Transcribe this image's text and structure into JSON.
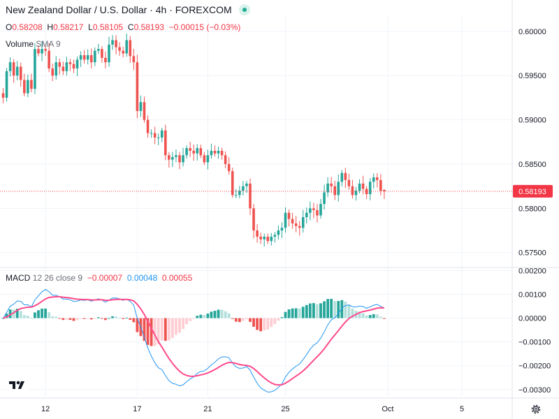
{
  "header": {
    "title": "New Zealand Dollar / U.S. Dollar · 4h · FOREXCOM",
    "ohlc": {
      "o_label": "O",
      "o": "0.58208",
      "h_label": "H",
      "h": "0.58217",
      "l_label": "L",
      "l": "0.58105",
      "c_label": "C",
      "c": "0.58193",
      "change": "−0.00015 (−0.03%)"
    },
    "volume_label": "Volume",
    "volume_sma": "SMA 9"
  },
  "macd_legend": {
    "label": "MACD",
    "params": "12 26 close 9",
    "hist": "−0.00007",
    "macd": "0.00048",
    "signal": "0.00055"
  },
  "colors": {
    "up": "#26a69a",
    "down": "#ef5350",
    "macd_line": "#2196f3",
    "signal_line": "#ff4a8b",
    "hist_up_strong": "#26a69a",
    "hist_up_weak": "#b2dfdb",
    "hist_down_strong": "#ef5350",
    "hist_down_weak": "#ffcdd2",
    "price_badge": "#f23645"
  },
  "icons": {
    "logo": "tradingview-logo-icon",
    "settings": "gear-icon",
    "status": "market-open-dot-icon"
  },
  "chart_data": [
    {
      "type": "candlestick",
      "title": "New Zealand Dollar / U.S. Dollar · 4h · FOREXCOM",
      "x_tick_labels": [
        "12",
        "17",
        "21",
        "25",
        "Oct",
        "5"
      ],
      "x_tick_index": [
        12,
        38,
        58,
        80,
        109,
        130
      ],
      "y_ticks": [
        0.575,
        0.58,
        0.585,
        0.59,
        0.595,
        0.6
      ],
      "y_tick_labels": [
        "0.57500",
        "0.58000",
        "0.58500",
        "0.59000",
        "0.59500",
        "0.60000"
      ],
      "ylim": [
        0.5734,
        0.6018
      ],
      "last_price": 0.58193,
      "last_price_label": "0.58193",
      "closes": [
        0.5925,
        0.5955,
        0.5965,
        0.595,
        0.596,
        0.5945,
        0.593,
        0.5945,
        0.5935,
        0.598,
        0.5975,
        0.598,
        0.5978,
        0.5958,
        0.595,
        0.5965,
        0.596,
        0.5955,
        0.5965,
        0.5963,
        0.5958,
        0.5968,
        0.5973,
        0.5968,
        0.5973,
        0.5965,
        0.5978,
        0.598,
        0.597,
        0.5965,
        0.5985,
        0.599,
        0.5982,
        0.5978,
        0.5975,
        0.599,
        0.5972,
        0.5965,
        0.591,
        0.592,
        0.59,
        0.5885,
        0.5885,
        0.588,
        0.588,
        0.5888,
        0.586,
        0.5855,
        0.5858,
        0.586,
        0.5852,
        0.586,
        0.5868,
        0.5865,
        0.5862,
        0.5868,
        0.586,
        0.5852,
        0.586,
        0.5865,
        0.5862,
        0.5865,
        0.586,
        0.585,
        0.5842,
        0.5815,
        0.5815,
        0.582,
        0.5825,
        0.5828,
        0.58,
        0.5775,
        0.5768,
        0.5765,
        0.5768,
        0.5763,
        0.5768,
        0.577,
        0.5775,
        0.5778,
        0.5795,
        0.5788,
        0.5783,
        0.578,
        0.5778,
        0.579,
        0.5795,
        0.58,
        0.5798,
        0.5792,
        0.5805,
        0.5818,
        0.5828,
        0.5825,
        0.5815,
        0.583,
        0.584,
        0.5832,
        0.5825,
        0.5815,
        0.582,
        0.5828,
        0.5822,
        0.5816,
        0.583,
        0.5835,
        0.5832,
        0.582,
        0.5819
      ],
      "ohlc_last": {
        "open": 0.58208,
        "high": 0.58217,
        "low": 0.58105,
        "close": 0.58193
      }
    },
    {
      "type": "macd",
      "params": "12 26 close 9",
      "y_ticks": [
        0.002,
        0.001,
        0,
        -0.001,
        -0.002,
        -0.003
      ],
      "y_tick_labels": [
        "0.00200",
        "0.00100",
        "0.00000",
        "−0.00100",
        "−0.00200",
        "−0.00300"
      ],
      "ylim": [
        -0.0033,
        0.0021
      ],
      "last_hist": -7e-05,
      "last_macd": 0.00048,
      "last_signal": 0.00055
    }
  ]
}
